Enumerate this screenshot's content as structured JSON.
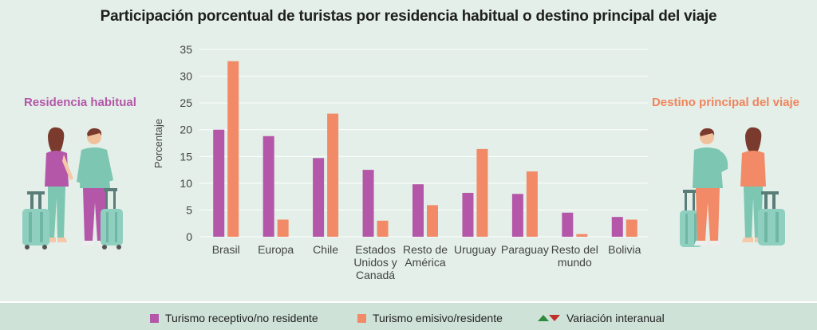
{
  "title": "Participación porcentual de turistas por residencia habitual o destino principal del viaje",
  "side_left_label": "Residencia habitual",
  "side_right_label": "Destino principal del viaje",
  "colors": {
    "receptivo": "#b457a8",
    "emisivo": "#f28a67",
    "left_label": "#b457a8",
    "right_label": "#f2845c",
    "up_arrow": "#2e8b3e",
    "down_arrow": "#c0302a"
  },
  "legend": {
    "receptivo_label": "Turismo receptivo/no residente",
    "emisivo_label": "Turismo emisivo/residente",
    "variacion_label": "Variación interanual"
  },
  "chart_data": {
    "type": "bar",
    "title": "Participación porcentual de turistas por residencia habitual o destino principal del viaje",
    "ylabel": "Porcentaje",
    "xlabel": "",
    "ylim": [
      0,
      35
    ],
    "yticks": [
      0,
      5,
      10,
      15,
      20,
      25,
      30,
      35
    ],
    "grid": true,
    "categories": [
      [
        "Brasil"
      ],
      [
        "Europa"
      ],
      [
        "Chile"
      ],
      [
        "Estados",
        "Unidos y",
        "Canadá"
      ],
      [
        "Resto de",
        "América"
      ],
      [
        "Uruguay"
      ],
      [
        "Paraguay"
      ],
      [
        "Resto del",
        "mundo"
      ],
      [
        "Bolivia"
      ]
    ],
    "series": [
      {
        "name": "Turismo receptivo/no residente",
        "values": [
          20.0,
          18.8,
          14.7,
          12.5,
          9.8,
          8.2,
          8.0,
          4.5,
          3.7
        ]
      },
      {
        "name": "Turismo emisivo/residente",
        "values": [
          32.8,
          3.2,
          23.0,
          3.0,
          5.9,
          16.4,
          12.2,
          0.5,
          3.2
        ]
      }
    ]
  }
}
